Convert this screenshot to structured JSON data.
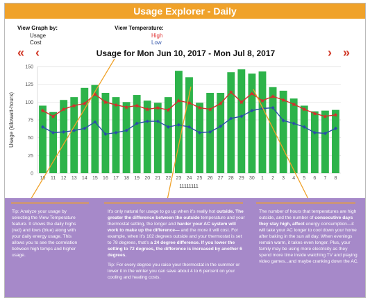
{
  "header": {
    "title": "Usage Explorer - Daily"
  },
  "view_graph": {
    "title": "View Graph by:",
    "usage": "Usage",
    "cost": "Cost"
  },
  "view_temp": {
    "title": "View Temperature:",
    "high": "High",
    "low": "Low"
  },
  "nav": {
    "first": "«",
    "prev": "‹",
    "next": "›",
    "last": "»"
  },
  "range_title": "Usage for Mon Jun 10, 2017  -  Mon Jul 8, 2017",
  "colors": {
    "accent": "#f0a22a",
    "bar": "#2db34a",
    "high_line": "#d82c2c",
    "low_line": "#2a4fa8",
    "panel": "#a689c9",
    "nav": "#d23b2a"
  },
  "chart_data": {
    "type": "bar",
    "ylabel": "Usage (kilowatt-hours)",
    "xlabel": "11111111",
    "ylim": [
      0,
      150
    ],
    "yticks": [
      0,
      25,
      50,
      75,
      100,
      125,
      150
    ],
    "categories": [
      "10",
      "11",
      "12",
      "13",
      "14",
      "15",
      "16",
      "17",
      "18",
      "19",
      "20",
      "21",
      "22",
      "23",
      "24",
      "25",
      "26",
      "27",
      "28",
      "29",
      "30",
      "1",
      "2",
      "3",
      "4",
      "5",
      "6",
      "7",
      "8"
    ],
    "series": [
      {
        "name": "Usage",
        "values": [
          95,
          86,
          103,
          107,
          120,
          124,
          113,
          107,
          100,
          110,
          102,
          99,
          107,
          144,
          135,
          99,
          113,
          113,
          142,
          146,
          140,
          143,
          121,
          116,
          105,
          95,
          87,
          88,
          89
        ]
      },
      {
        "name": "High",
        "values": [
          88,
          80,
          90,
          95,
          98,
          111,
          100,
          96,
          93,
          95,
          90,
          92,
          89,
          102,
          99,
          92,
          90,
          98,
          114,
          100,
          112,
          102,
          108,
          103,
          97,
          90,
          84,
          80,
          82
        ]
      },
      {
        "name": "Low",
        "values": [
          65,
          57,
          58,
          60,
          63,
          72,
          55,
          57,
          60,
          70,
          73,
          73,
          65,
          68,
          65,
          57,
          58,
          66,
          77,
          80,
          88,
          91,
          92,
          74,
          70,
          65,
          57,
          56,
          63
        ]
      }
    ]
  },
  "tips": {
    "tip1": "Tip: Analyze your usage by selecting the View Temperature feature. It shows the daily highs (red) and lows (blue) along with your daily energy usage. This allows you to see the correlation between high temps and higher usage.",
    "tip2a": "It’s only natural for usage to go up when it’s really hot ",
    "tip2b": "outside. The greater the difference between the outside",
    "tip2c": " temperature and your thermostat setting, the longer and ",
    "tip2d": "harder your AC system will work to make up the difference—",
    "tip2e": " and the more it will cost. For example, when it’s 102 degrees outside and your thermostat is set to 78 degrees, that’s ",
    "tip2f": "a 24 degree difference. If you lower the setting to 72 degrees, the difference is increased by another 6 degrees.",
    "tip3": "Tip: For every degree you raise your thermostat in the summer or lower it in the winter you can save about 4 to 6 percent on your cooling and heating costs.",
    "tip4a": "The number of hours that temperatures are high outside, and the number of ",
    "tip4b": "consecutive days they stay high, affect",
    "tip4c": " energy consumption—it will take your AC longer to cool down your home after baking in the sun all day. When evenings remain warm, it takes even longer. Plus, your family may be using more electricity as they spend more time inside watching TV and playing video games...and maybe cranking down the AC."
  }
}
